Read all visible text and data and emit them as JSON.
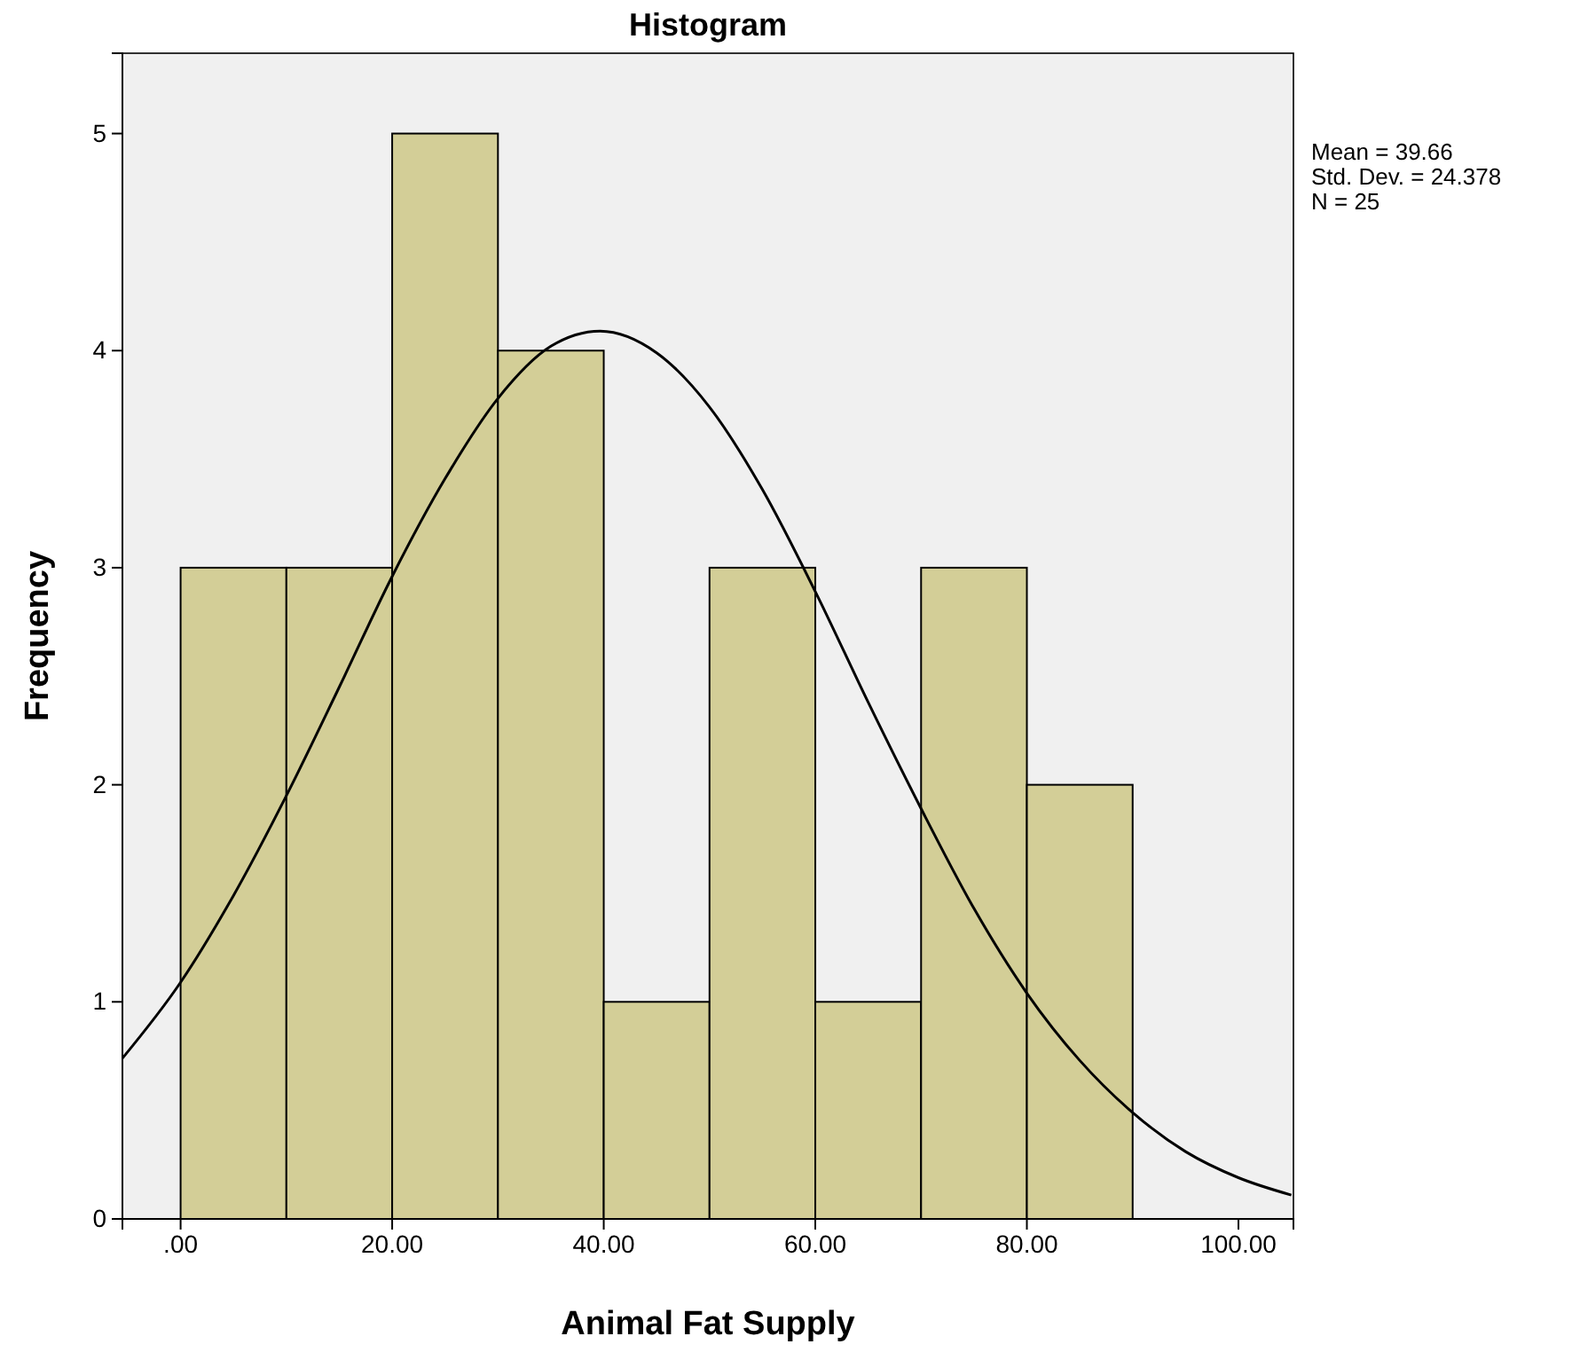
{
  "chart_data": {
    "type": "histogram",
    "title": "Histogram",
    "xlabel": "Animal Fat Supply",
    "ylabel": "Frequency",
    "bins": [
      0,
      10,
      20,
      30,
      40,
      50,
      60,
      70,
      80,
      90
    ],
    "values": [
      3,
      3,
      5,
      4,
      1,
      3,
      1,
      3,
      2
    ],
    "color": "#d3ce97",
    "series": [
      {
        "type": "line",
        "color": "#000000",
        "x": [
          -5.5,
          0,
          5,
          10,
          15,
          20,
          25,
          30,
          35,
          39.66,
          45,
          50,
          55,
          60,
          65,
          70,
          75,
          80,
          85,
          90,
          95,
          100,
          105
        ],
        "values": [
          0.74,
          1.09,
          1.49,
          1.95,
          2.45,
          2.96,
          3.41,
          3.78,
          4.02,
          4.09,
          3.99,
          3.74,
          3.36,
          2.89,
          2.38,
          1.89,
          1.43,
          1.04,
          0.73,
          0.49,
          0.31,
          0.19,
          0.11
        ]
      }
    ],
    "xlim": [
      -5.5,
      105.2
    ],
    "ylim": [
      0,
      5.37
    ],
    "xticks": [
      {
        "value": 0,
        "label": ".00"
      },
      {
        "value": 20,
        "label": "20.00"
      },
      {
        "value": 40,
        "label": "40.00"
      },
      {
        "value": 60,
        "label": "60.00"
      },
      {
        "value": 80,
        "label": "80.00"
      },
      {
        "value": 100,
        "label": "100.00"
      }
    ],
    "yticks": [
      0,
      1,
      2,
      3,
      4,
      5
    ],
    "grid": false,
    "annotations": [
      "Mean = 39.66",
      "Std. Dev. = 24.378",
      "N = 25"
    ]
  }
}
